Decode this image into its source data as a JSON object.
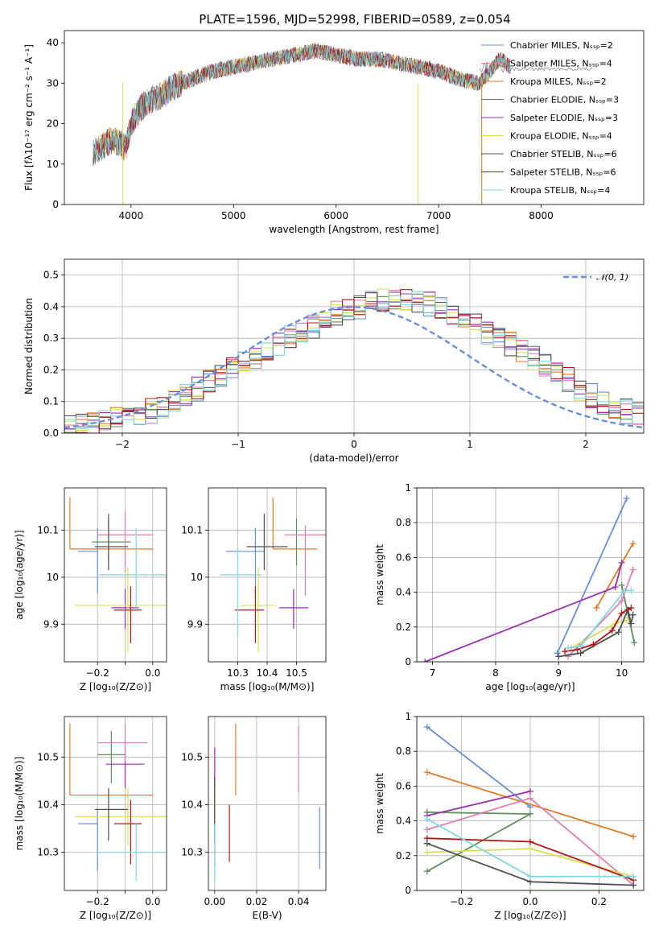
{
  "figure_title": "PLATE=1596, MJD=52998, FIBERID=0589, z=0.054",
  "colors": {
    "c0": "#6a8fd8",
    "c1": "#e07b2a",
    "c2": "#5f8f5f",
    "c3": "#9a30b0",
    "c4": "#e080b0",
    "c5": "#d8e050",
    "c6": "#505050",
    "c7": "#b01818",
    "c8": "#80d8e0"
  },
  "chart_data": [
    {
      "type": "line",
      "title": "PLATE=1596, MJD=52998, FIBERID=0589, z=0.054",
      "xlabel": "wavelength [Angstrom, rest frame]",
      "ylabel": "Flux [fλ10⁻¹⁷ erg cm⁻² s⁻¹ A⁻¹]",
      "xlim": [
        3350,
        9000
      ],
      "ylim": [
        0,
        43
      ],
      "xticks": [
        4000,
        5000,
        6000,
        7000,
        8000
      ],
      "yticks": [
        0,
        10,
        20,
        30,
        40
      ],
      "legend_position": "top-right",
      "spectrum_shape": {
        "x": [
          3630,
          3700,
          3800,
          3900,
          3950,
          4000,
          4100,
          4200,
          4300,
          4400,
          4500,
          4600,
          4800,
          5000,
          5200,
          5400,
          5600,
          5800,
          6000,
          6200,
          6400,
          6600,
          6800,
          7000,
          7200,
          7400,
          7600,
          7700
        ],
        "y": [
          13,
          14,
          16,
          15,
          14,
          20,
          24,
          26,
          27,
          29,
          30,
          31,
          33,
          34,
          35,
          36,
          37,
          38,
          37,
          36,
          36,
          35,
          34,
          33,
          31,
          30,
          36,
          34
        ]
      },
      "series": [
        {
          "name": "Chabrier MILES, N_SSP=2",
          "color": "#6a8fd8"
        },
        {
          "name": "Salpeter MILES, N_SSP=4",
          "color": "#e080b0"
        },
        {
          "name": "Kroupa MILES, N_SSP=2",
          "color": "#e07b2a"
        },
        {
          "name": "Chabrier ELODIE, N_SSP=3",
          "color": "#5f8f5f"
        },
        {
          "name": "Salpeter ELODIE, N_SSP=3",
          "color": "#9a30b0"
        },
        {
          "name": "Kroupa ELODIE, N_SSP=4",
          "color": "#d8e050"
        },
        {
          "name": "Chabrier STELIB, N_SSP=6",
          "color": "#505050"
        },
        {
          "name": "Salpeter STELIB, N_SSP=6",
          "color": "#b01818"
        },
        {
          "name": "Kroupa STELIB, N_SSP=4",
          "color": "#80d8e0"
        }
      ],
      "dropouts": [
        {
          "x": 3920,
          "color": "#d8e050"
        },
        {
          "x": 6800,
          "color": "#d8e050"
        },
        {
          "x": 7420,
          "color": "#e07b2a"
        }
      ]
    },
    {
      "type": "histogram",
      "xlabel": "(data-model)/error",
      "ylabel": "Normed distribution",
      "xlim": [
        -2.5,
        2.5
      ],
      "ylim": [
        0,
        0.55
      ],
      "xticks": [
        -2,
        -1,
        0,
        1,
        2
      ],
      "yticks": [
        0.0,
        0.1,
        0.2,
        0.3,
        0.4,
        0.5
      ],
      "legend": "𝒩(0, 1)",
      "reference_curve": "gaussian N(0,1)",
      "bin_edges_range": [
        -2.6,
        2.6
      ],
      "bin_width": 0.1,
      "envelope_values": [
        0.02,
        0.025,
        0.03,
        0.035,
        0.04,
        0.045,
        0.05,
        0.06,
        0.07,
        0.085,
        0.1,
        0.12,
        0.14,
        0.16,
        0.18,
        0.2,
        0.22,
        0.24,
        0.26,
        0.28,
        0.3,
        0.32,
        0.34,
        0.36,
        0.38,
        0.39,
        0.4,
        0.41,
        0.42,
        0.42,
        0.42,
        0.42,
        0.41,
        0.4,
        0.38,
        0.36,
        0.34,
        0.32,
        0.3,
        0.28,
        0.26,
        0.24,
        0.22,
        0.19,
        0.17,
        0.14,
        0.12,
        0.1,
        0.085,
        0.07,
        0.06,
        0.05
      ]
    },
    {
      "type": "scatter-errorbar",
      "xlabel": "Z [log₁₀(Z/Z⊙)]",
      "ylabel": "age  [log₁₀(age/yr)]",
      "xlim": [
        -0.32,
        0.05
      ],
      "ylim": [
        9.82,
        10.19
      ],
      "xticks": [
        -0.2,
        -0.1,
        0.0
      ],
      "yticks": [
        9.9,
        10.0,
        10.1
      ],
      "xticklabels": [
        "−0.2",
        "",
        "0.0"
      ],
      "points": [
        {
          "x": -0.2,
          "y": 10.055,
          "xerr": [
            0.07,
            0.0
          ],
          "yerr": [
            0.09,
            0.05
          ],
          "color": "#6a8fd8"
        },
        {
          "x": -0.3,
          "y": 10.06,
          "xerr": [
            0.0,
            0.3
          ],
          "yerr": [
            0.0,
            0.11
          ],
          "color": "#e07b2a"
        },
        {
          "x": -0.16,
          "y": 10.075,
          "xerr": [
            0.06,
            0.08
          ],
          "yerr": [
            0.05,
            0.05
          ],
          "color": "#5f8f5f"
        },
        {
          "x": -0.1,
          "y": 9.935,
          "xerr": [
            0.05,
            0.05
          ],
          "yerr": [
            0.045,
            0.04
          ],
          "color": "#9a30b0"
        },
        {
          "x": -0.1,
          "y": 10.09,
          "xerr": [
            0.1,
            0.1
          ],
          "yerr": [
            0.08,
            0.05
          ],
          "color": "#e080b0"
        },
        {
          "x": -0.09,
          "y": 9.94,
          "xerr": [
            0.19,
            0.17
          ],
          "yerr": [
            0.1,
            0.08
          ],
          "color": "#d8e050"
        },
        {
          "x": -0.16,
          "y": 10.065,
          "xerr": [
            0.05,
            0.07
          ],
          "yerr": [
            0.05,
            0.07
          ],
          "color": "#505050"
        },
        {
          "x": -0.08,
          "y": 9.93,
          "xerr": [
            0.06,
            0.04
          ],
          "yerr": [
            0.07,
            0.05
          ],
          "color": "#b01818"
        },
        {
          "x": -0.06,
          "y": 10.005,
          "xerr": [
            0.14,
            0.12
          ],
          "yerr": [
            0.07,
            0.1
          ],
          "color": "#80d8e0"
        }
      ]
    },
    {
      "type": "scatter-errorbar",
      "xlabel": "mass [log₁₀(M/M⊙)]",
      "ylabel": "",
      "xlim": [
        10.2,
        10.6
      ],
      "ylim": [
        9.82,
        10.19
      ],
      "xticks": [
        10.3,
        10.4,
        10.5
      ],
      "yticks": [
        9.9,
        10.0,
        10.1
      ],
      "points": [
        {
          "x": 10.36,
          "y": 10.055,
          "xerr": [
            0.1,
            0.03
          ],
          "yerr": [
            0.09,
            0.05
          ],
          "color": "#6a8fd8"
        },
        {
          "x": 10.42,
          "y": 10.06,
          "xerr": [
            0.0,
            0.15
          ],
          "yerr": [
            0.0,
            0.11
          ],
          "color": "#e07b2a"
        },
        {
          "x": 10.5,
          "y": 10.075,
          "xerr": [
            0.0,
            0.0
          ],
          "yerr": [
            0.05,
            0.05
          ],
          "color": "#5f8f5f"
        },
        {
          "x": 10.49,
          "y": 9.935,
          "xerr": [
            0.05,
            0.05
          ],
          "yerr": [
            0.045,
            0.04
          ],
          "color": "#9a30b0"
        },
        {
          "x": 10.53,
          "y": 10.09,
          "xerr": [
            0.07,
            0.07
          ],
          "yerr": [
            0.13,
            0.02
          ],
          "color": "#e080b0"
        },
        {
          "x": 10.37,
          "y": 9.94,
          "xerr": [
            0.06,
            0.06
          ],
          "yerr": [
            0.1,
            0.08
          ],
          "color": "#d8e050"
        },
        {
          "x": 10.39,
          "y": 10.065,
          "xerr": [
            0.06,
            0.08
          ],
          "yerr": [
            0.05,
            0.07
          ],
          "color": "#505050"
        },
        {
          "x": 10.36,
          "y": 9.93,
          "xerr": [
            0.07,
            0.03
          ],
          "yerr": [
            0.07,
            0.05
          ],
          "color": "#b01818"
        },
        {
          "x": 10.3,
          "y": 10.005,
          "xerr": [
            0.06,
            0.08
          ],
          "yerr": [
            0.13,
            0.06
          ],
          "color": "#80d8e0"
        }
      ]
    },
    {
      "type": "line",
      "xlabel": "age  [log₁₀(age/yr)]",
      "ylabel": "mass weight",
      "xlim": [
        6.75,
        10.35
      ],
      "ylim": [
        0,
        1.0
      ],
      "xticks": [
        7,
        8,
        9,
        10
      ],
      "yticks": [
        0.0,
        0.2,
        0.4,
        0.6,
        0.8,
        1.0
      ],
      "series": [
        {
          "color": "#6a8fd8",
          "x": [
            8.98,
            10.08
          ],
          "y": [
            0.05,
            0.94
          ]
        },
        {
          "color": "#e07b2a",
          "x": [
            9.6,
            10.18
          ],
          "y": [
            0.31,
            0.68
          ]
        },
        {
          "color": "#5f8f5f",
          "x": [
            10.0,
            10.2
          ],
          "y": [
            0.44,
            0.11
          ]
        },
        {
          "color": "#9a30b0",
          "x": [
            6.88,
            9.9,
            10.0
          ],
          "y": [
            0.0,
            0.43,
            0.57
          ]
        },
        {
          "color": "#e080b0",
          "x": [
            9.15,
            10.0,
            10.18
          ],
          "y": [
            0.03,
            0.35,
            0.53
          ]
        },
        {
          "color": "#d8e050",
          "x": [
            9.2,
            9.9,
            10.08
          ],
          "y": [
            0.08,
            0.22,
            0.24
          ]
        },
        {
          "color": "#505050",
          "x": [
            9.0,
            9.35,
            9.95,
            10.1,
            10.15,
            10.18
          ],
          "y": [
            0.03,
            0.05,
            0.17,
            0.3,
            0.22,
            0.27
          ]
        },
        {
          "color": "#b01818",
          "x": [
            9.1,
            9.3,
            9.55,
            9.85,
            10.0,
            10.15
          ],
          "y": [
            0.06,
            0.07,
            0.1,
            0.18,
            0.28,
            0.31
          ]
        },
        {
          "color": "#80d8e0",
          "x": [
            9.15,
            9.35,
            10.05,
            10.15
          ],
          "y": [
            0.08,
            0.09,
            0.41,
            0.41
          ]
        }
      ]
    },
    {
      "type": "scatter-errorbar",
      "xlabel": "Z [log₁₀(Z/Z⊙)]",
      "ylabel": "mass [log₁₀(M/M⊙)]",
      "xlim": [
        -0.32,
        0.05
      ],
      "ylim": [
        10.22,
        10.585
      ],
      "xticks": [
        -0.2,
        -0.1,
        0.0
      ],
      "yticks": [
        10.3,
        10.4,
        10.5
      ],
      "xticklabels": [
        "−0.2",
        "",
        "0.0"
      ],
      "points": [
        {
          "x": -0.2,
          "y": 10.36,
          "xerr": [
            0.07,
            0.0
          ],
          "yerr": [
            0.1,
            0.03
          ],
          "color": "#6a8fd8"
        },
        {
          "x": -0.3,
          "y": 10.42,
          "xerr": [
            0.0,
            0.3
          ],
          "yerr": [
            0.0,
            0.15
          ],
          "color": "#e07b2a"
        },
        {
          "x": -0.15,
          "y": 10.505,
          "xerr": [
            0.05,
            0.05
          ],
          "yerr": [
            0.06,
            0.05
          ],
          "color": "#5f8f5f"
        },
        {
          "x": -0.1,
          "y": 10.485,
          "xerr": [
            0.07,
            0.07
          ],
          "yerr": [
            0.05,
            0.05
          ],
          "color": "#9a30b0"
        },
        {
          "x": -0.1,
          "y": 10.53,
          "xerr": [
            0.1,
            0.08
          ],
          "yerr": [
            0.04,
            0.04
          ],
          "color": "#e080b0"
        },
        {
          "x": -0.09,
          "y": 10.375,
          "xerr": [
            0.19,
            0.17
          ],
          "yerr": [
            0.06,
            0.06
          ],
          "color": "#d8e050"
        },
        {
          "x": -0.16,
          "y": 10.39,
          "xerr": [
            0.05,
            0.07
          ],
          "yerr": [
            0.065,
            0.045
          ],
          "color": "#505050"
        },
        {
          "x": -0.08,
          "y": 10.36,
          "xerr": [
            0.06,
            0.04
          ],
          "yerr": [
            0.085,
            0.05
          ],
          "color": "#b01818"
        },
        {
          "x": -0.06,
          "y": 10.3,
          "xerr": [
            0.14,
            0.12
          ],
          "yerr": [
            0.06,
            0.06
          ],
          "color": "#80d8e0"
        }
      ]
    },
    {
      "type": "scatter-errorbar",
      "xlabel": "E(B-V)",
      "ylabel": "",
      "xlim": [
        -0.003,
        0.053
      ],
      "ylim": [
        10.22,
        10.585
      ],
      "xticks": [
        0.0,
        0.02,
        0.04
      ],
      "yticks": [
        10.3,
        10.4,
        10.5
      ],
      "xticklabels": [
        "0.00",
        "0.02",
        "0.04"
      ],
      "points": [
        {
          "x": 0.05,
          "y": 10.33,
          "xerr": [
            0,
            0
          ],
          "yerr": [
            0.065,
            0.065
          ],
          "color": "#6a8fd8"
        },
        {
          "x": 0.01,
          "y": 10.495,
          "xerr": [
            0,
            0
          ],
          "yerr": [
            0.075,
            0.075
          ],
          "color": "#e07b2a"
        },
        {
          "x": 0.0,
          "y": 10.35,
          "xerr": [
            0,
            0
          ],
          "yerr": [
            0.08,
            0.08
          ],
          "color": "#5f8f5f"
        },
        {
          "x": 0.0,
          "y": 10.47,
          "xerr": [
            0,
            0
          ],
          "yerr": [
            0.05,
            0.05
          ],
          "color": "#9a30b0"
        },
        {
          "x": 0.04,
          "y": 10.495,
          "xerr": [
            0,
            0
          ],
          "yerr": [
            0.07,
            0.07
          ],
          "color": "#e080b0"
        },
        {
          "x": 0.0,
          "y": 10.38,
          "xerr": [
            0,
            0
          ],
          "yerr": [
            0.06,
            0.06
          ],
          "color": "#d8e050"
        },
        {
          "x": 0.0,
          "y": 10.39,
          "xerr": [
            0,
            0
          ],
          "yerr": [
            0.07,
            0.07
          ],
          "color": "#505050"
        },
        {
          "x": 0.007,
          "y": 10.34,
          "xerr": [
            0,
            0
          ],
          "yerr": [
            0.06,
            0.06
          ],
          "color": "#b01818"
        },
        {
          "x": 0.0,
          "y": 10.3,
          "xerr": [
            0,
            0
          ],
          "yerr": [
            0.06,
            0.06
          ],
          "color": "#80d8e0"
        }
      ]
    },
    {
      "type": "line",
      "xlabel": "Z [log₁₀(Z/Z⊙)]",
      "ylabel": "mass weight",
      "xlim": [
        -0.33,
        0.33
      ],
      "ylim": [
        0,
        1.0
      ],
      "xticks": [
        -0.2,
        0.0,
        0.2
      ],
      "yticks": [
        0.0,
        0.2,
        0.4,
        0.6,
        0.8,
        1.0
      ],
      "xticklabels": [
        "−0.2",
        "0.0",
        "0.2"
      ],
      "series": [
        {
          "color": "#6a8fd8",
          "x": [
            -0.3,
            0.0
          ],
          "y": [
            0.94,
            0.48
          ]
        },
        {
          "color": "#e07b2a",
          "x": [
            -0.3,
            0.3
          ],
          "y": [
            0.68,
            0.31
          ]
        },
        {
          "color": "#5f8f5f",
          "x": [
            -0.3,
            0.0,
            -0.3
          ],
          "y": [
            0.11,
            0.44,
            0.45
          ]
        },
        {
          "color": "#9a30b0",
          "x": [
            -0.3,
            0.0
          ],
          "y": [
            0.43,
            0.57
          ]
        },
        {
          "color": "#e080b0",
          "x": [
            -0.3,
            0.0,
            0.3
          ],
          "y": [
            0.35,
            0.53,
            0.03
          ]
        },
        {
          "color": "#d8e050",
          "x": [
            -0.3,
            0.0,
            0.3
          ],
          "y": [
            0.22,
            0.24,
            0.08
          ]
        },
        {
          "color": "#505050",
          "x": [
            -0.3,
            0.0,
            0.3
          ],
          "y": [
            0.27,
            0.05,
            0.03
          ]
        },
        {
          "color": "#b01818",
          "x": [
            -0.3,
            0.0,
            0.3
          ],
          "y": [
            0.3,
            0.28,
            0.06
          ]
        },
        {
          "color": "#80d8e0",
          "x": [
            -0.3,
            0.0,
            0.3
          ],
          "y": [
            0.41,
            0.08,
            0.08
          ]
        }
      ]
    }
  ]
}
